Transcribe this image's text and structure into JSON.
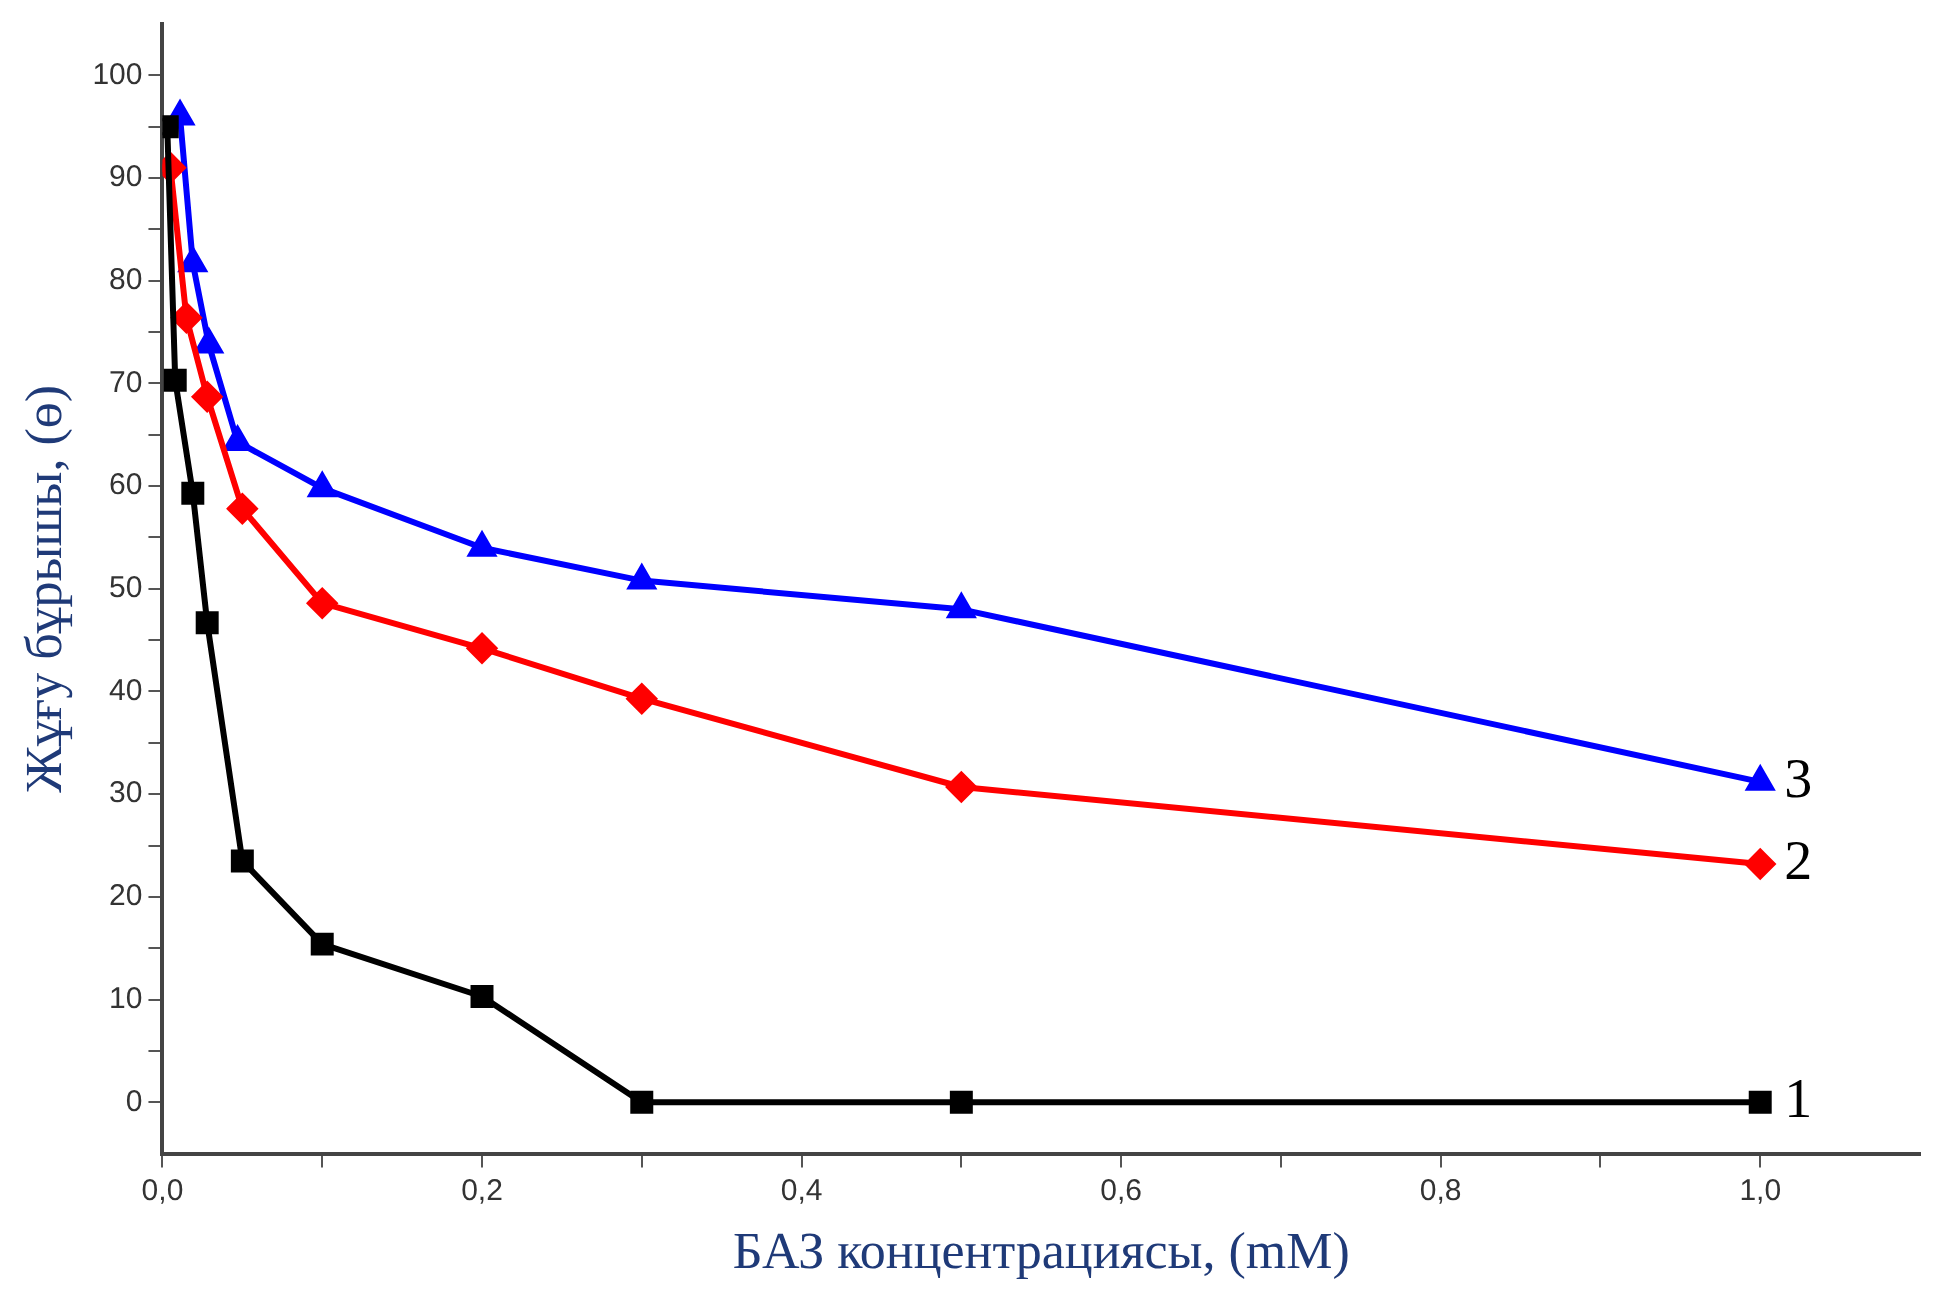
{
  "chart_data": {
    "type": "line",
    "xlabel": "БАЗ концентрациясы, (mM)",
    "ylabel": "Жұғу бұрышы, (ө)",
    "series": [
      {
        "name": "1",
        "color": "#000000",
        "marker": "square",
        "x": [
          0.003,
          0.008,
          0.019,
          0.028,
          0.05,
          0.1,
          0.2,
          0.3,
          0.5,
          1.0
        ],
        "values": [
          95,
          70.3,
          59.3,
          46.7,
          23.5,
          15.4,
          10.3,
          0,
          0,
          0
        ]
      },
      {
        "name": "2",
        "color": "#ff0000",
        "marker": "diamond",
        "x": [
          0.005,
          0.015,
          0.028,
          0.05,
          0.1,
          0.2,
          0.3,
          0.5,
          1.0
        ],
        "values": [
          91,
          76.4,
          68.7,
          57.8,
          48.6,
          44.2,
          39.3,
          30.7,
          23.2
        ]
      },
      {
        "name": "3",
        "color": "#0000ff",
        "marker": "triangle",
        "x": [
          0.011,
          0.019,
          0.029,
          0.047,
          0.1,
          0.2,
          0.3,
          0.5,
          1.0
        ],
        "values": [
          96,
          81.7,
          73.8,
          64.3,
          59.8,
          54,
          50.8,
          48,
          31.2
        ]
      }
    ],
    "xlim": [
      0,
      1.1
    ],
    "ylim": [
      -5,
      105
    ],
    "xticks": [
      {
        "value": 0,
        "label": "0,0"
      },
      {
        "value": 0.1,
        "label": null
      },
      {
        "value": 0.2,
        "label": "0,2"
      },
      {
        "value": 0.3,
        "label": null
      },
      {
        "value": 0.4,
        "label": "0,4"
      },
      {
        "value": 0.5,
        "label": null
      },
      {
        "value": 0.6,
        "label": "0,6"
      },
      {
        "value": 0.7,
        "label": null
      },
      {
        "value": 0.8,
        "label": "0,8"
      },
      {
        "value": 0.9,
        "label": null
      },
      {
        "value": 1.0,
        "label": "1,0"
      }
    ],
    "yticks": [
      0,
      {
        "value": 5,
        "label": null
      },
      10,
      {
        "value": 15,
        "label": null
      },
      20,
      {
        "value": 25,
        "label": null
      },
      30,
      {
        "value": 35,
        "label": null
      },
      40,
      {
        "value": 45,
        "label": null
      },
      50,
      {
        "value": 55,
        "label": null
      },
      60,
      {
        "value": 65,
        "label": null
      },
      70,
      {
        "value": 75,
        "label": null
      },
      80,
      {
        "value": 85,
        "label": null
      },
      90,
      {
        "value": 95,
        "label": null
      },
      100
    ],
    "grid": false,
    "legend": false
  }
}
